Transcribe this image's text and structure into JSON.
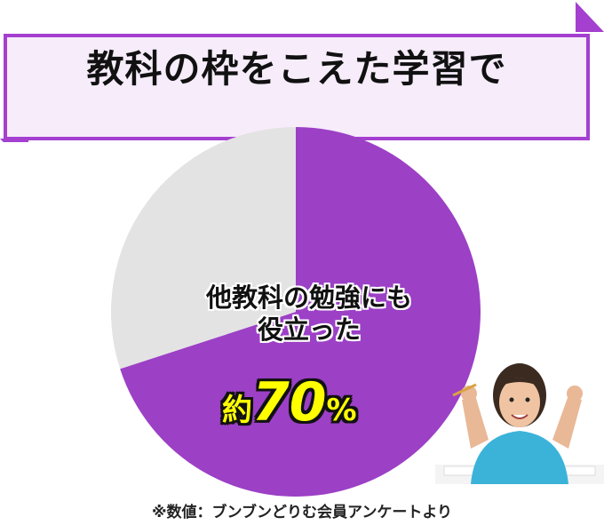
{
  "banner": {
    "title": "教科の枠をこえた学習で"
  },
  "chart_data": {
    "type": "pie",
    "title": "",
    "slices": [
      {
        "label": "他教科の勉強にも役立った",
        "value": 70,
        "color": "#9c40c6"
      },
      {
        "label": "",
        "value": 30,
        "color": "#e3e3e3"
      }
    ],
    "start_angle": "12 o'clock",
    "direction": "clockwise"
  },
  "callout": {
    "line1": "他教科の勉強にも",
    "line2": "役立った",
    "prefix": "約",
    "value": "70",
    "unit": "%"
  },
  "footnote": "※数値：ブンブンどりむ会員アンケートより",
  "photo": {
    "description_icon": "girl-photo"
  }
}
